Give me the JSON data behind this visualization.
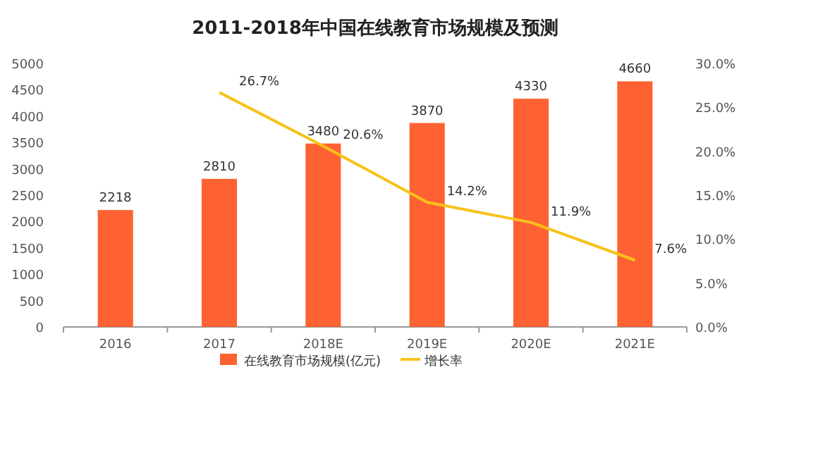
{
  "chart_data": {
    "type": "bar",
    "title": "2011-2018年中国在线教育市场规模及预测",
    "categories": [
      "2016",
      "2017",
      "2018E",
      "2019E",
      "2020E",
      "2021E"
    ],
    "series": [
      {
        "name": "在线教育市场规模(亿元)",
        "type": "bar",
        "color": "#fe6232",
        "values": [
          2218,
          2810,
          3480,
          3870,
          4330,
          4660
        ],
        "data_labels": true
      },
      {
        "name": "增长率",
        "type": "line",
        "axis": "y2",
        "color": "#f7c21a",
        "values": [
          null,
          26.7,
          20.6,
          14.2,
          11.9,
          7.6
        ],
        "value_labels": [
          null,
          "26.7%",
          "20.6%",
          "14.2%",
          "11.9%",
          "7.6%"
        ],
        "marker": "none"
      }
    ],
    "ylim": [
      0,
      5000
    ],
    "yticks": [
      0,
      500,
      1000,
      1500,
      2000,
      2500,
      3000,
      3500,
      4000,
      4500,
      5000
    ],
    "y2lim": [
      0,
      30
    ],
    "y2ticks": [
      {
        "value": 0,
        "label": "0.0%"
      },
      {
        "value": 5,
        "label": "5.0%"
      },
      {
        "value": 10,
        "label": "10.0%"
      },
      {
        "value": 15,
        "label": "15.0%"
      },
      {
        "value": 20,
        "label": "20.0%"
      },
      {
        "value": 25,
        "label": "25.0%"
      },
      {
        "value": 30,
        "label": "30.0%"
      }
    ],
    "grid": false,
    "legend": "bottom"
  }
}
